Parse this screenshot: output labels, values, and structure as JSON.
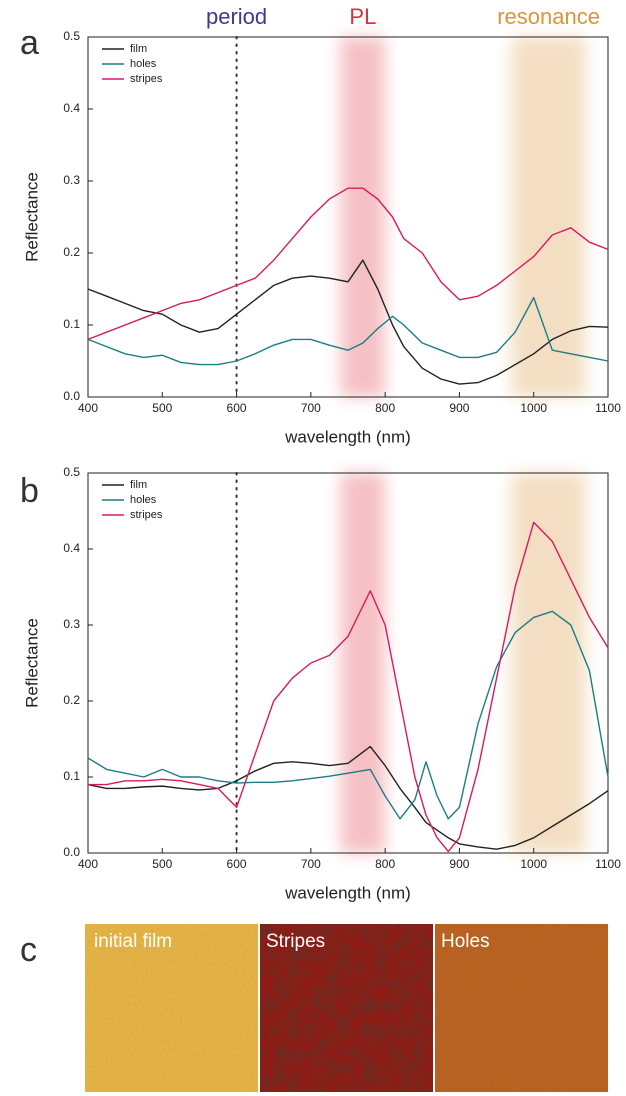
{
  "chart_data": [
    {
      "type": "line",
      "panel_label": "a",
      "xlabel": "wavelength (nm)",
      "ylabel": "Reflectance",
      "xlim": [
        400,
        1100
      ],
      "ylim": [
        0,
        0.5
      ],
      "xticks": [
        400,
        500,
        600,
        700,
        800,
        900,
        1000,
        1100
      ],
      "yticks": [
        {
          "value": 0,
          "label": "0.0"
        },
        0.1,
        0.2,
        0.3,
        0.4,
        0.5
      ],
      "legend": "upper left",
      "x": [
        400,
        425,
        450,
        475,
        500,
        525,
        550,
        575,
        600,
        625,
        650,
        675,
        700,
        725,
        750,
        770,
        790,
        810,
        825,
        850,
        875,
        900,
        925,
        950,
        975,
        1000,
        1025,
        1050,
        1075,
        1100
      ],
      "series": [
        {
          "name": "film",
          "color": "#222222",
          "values": [
            0.15,
            0.14,
            0.13,
            0.12,
            0.115,
            0.1,
            0.09,
            0.095,
            0.115,
            0.135,
            0.155,
            0.165,
            0.168,
            0.165,
            0.16,
            0.19,
            0.15,
            0.1,
            0.07,
            0.04,
            0.025,
            0.018,
            0.02,
            0.03,
            0.045,
            0.06,
            0.08,
            0.092,
            0.098,
            0.097
          ]
        },
        {
          "name": "holes",
          "color": "#1b7d86",
          "values": [
            0.08,
            0.07,
            0.06,
            0.055,
            0.058,
            0.048,
            0.045,
            0.045,
            0.05,
            0.06,
            0.072,
            0.08,
            0.08,
            0.072,
            0.065,
            0.075,
            0.095,
            0.112,
            0.1,
            0.075,
            0.065,
            0.055,
            0.055,
            0.062,
            0.09,
            0.138,
            0.065,
            0.06,
            0.055,
            0.05
          ]
        },
        {
          "name": "stripes",
          "color": "#d81b60",
          "values": [
            0.08,
            0.09,
            0.1,
            0.11,
            0.12,
            0.13,
            0.135,
            0.145,
            0.155,
            0.165,
            0.19,
            0.22,
            0.25,
            0.275,
            0.29,
            0.29,
            0.275,
            0.25,
            0.22,
            0.2,
            0.16,
            0.135,
            0.14,
            0.155,
            0.175,
            0.195,
            0.225,
            0.235,
            0.215,
            0.205
          ]
        }
      ],
      "period": {
        "label": "period",
        "x": 600,
        "color": "#3b3a8f"
      },
      "bands": [
        {
          "label": "PL",
          "xlim": [
            740,
            800
          ],
          "color": "#e0303c"
        },
        {
          "label": "resonance",
          "xlim": [
            970,
            1070
          ],
          "color": "#d9953a"
        }
      ]
    },
    {
      "type": "line",
      "panel_label": "b",
      "xlabel": "wavelength (nm)",
      "ylabel": "Reflectance",
      "xlim": [
        400,
        1100
      ],
      "ylim": [
        0,
        0.5
      ],
      "xticks": [
        400,
        500,
        600,
        700,
        800,
        900,
        1000,
        1100
      ],
      "yticks": [
        {
          "value": 0,
          "label": "0.0"
        },
        0.1,
        0.2,
        0.3,
        0.4,
        0.5
      ],
      "legend": "upper left",
      "x": [
        400,
        425,
        450,
        475,
        500,
        525,
        550,
        575,
        600,
        625,
        650,
        675,
        700,
        725,
        750,
        780,
        800,
        820,
        840,
        855,
        870,
        885,
        900,
        925,
        950,
        975,
        1000,
        1025,
        1050,
        1075,
        1100
      ],
      "series": [
        {
          "name": "film",
          "color": "#222222",
          "values": [
            0.09,
            0.085,
            0.085,
            0.087,
            0.088,
            0.085,
            0.083,
            0.085,
            0.095,
            0.108,
            0.118,
            0.12,
            0.118,
            0.115,
            0.118,
            0.14,
            0.115,
            0.085,
            0.06,
            0.04,
            0.03,
            0.02,
            0.012,
            0.008,
            0.005,
            0.01,
            0.02,
            0.035,
            0.05,
            0.065,
            0.082
          ]
        },
        {
          "name": "holes",
          "color": "#1b7d86",
          "values": [
            0.125,
            0.11,
            0.105,
            0.1,
            0.11,
            0.1,
            0.1,
            0.095,
            0.092,
            0.093,
            0.093,
            0.095,
            0.098,
            0.101,
            0.105,
            0.11,
            0.075,
            0.045,
            0.07,
            0.12,
            0.075,
            0.045,
            0.06,
            0.17,
            0.245,
            0.29,
            0.31,
            0.318,
            0.3,
            0.24,
            0.1
          ]
        },
        {
          "name": "stripes",
          "color": "#d81b60",
          "values": [
            0.09,
            0.09,
            0.095,
            0.095,
            0.097,
            0.095,
            0.09,
            0.085,
            0.06,
            0.13,
            0.2,
            0.23,
            0.25,
            0.26,
            0.285,
            0.345,
            0.3,
            0.2,
            0.1,
            0.05,
            0.02,
            0.002,
            0.02,
            0.11,
            0.23,
            0.35,
            0.435,
            0.41,
            0.36,
            0.31,
            0.27
          ]
        }
      ],
      "period": {
        "x": 600,
        "color": "#3b3a8f"
      },
      "bands": [
        {
          "xlim": [
            740,
            800
          ],
          "color": "#e0303c"
        },
        {
          "xlim": [
            970,
            1070
          ],
          "color": "#d9953a"
        }
      ]
    }
  ],
  "image_panel": {
    "panel_label": "c",
    "images": [
      "initial film",
      "Stripes",
      "Holes"
    ]
  }
}
